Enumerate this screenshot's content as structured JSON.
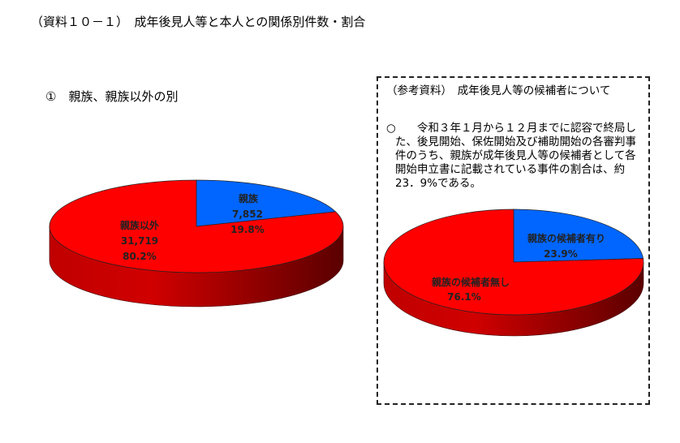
{
  "title": "（資料１０－１）　成年後見人等と本人との関係別件数・割合",
  "subtitle": "①　親族、親族以外の別",
  "reference": {
    "title": "（参考資料）　成年後見人等の候補者について",
    "bullet": "○",
    "text": "令和３年１月から１２月までに認容で終局した、後見開始、保佐開始及び補助開始の各審判事件のうち、親族が成年後見人等の候補者として各開始申立書に記載されている事件の割合は、約23．9%である。"
  },
  "colors": {
    "blue": "#0066ff",
    "red": "#ff0000",
    "side_dark": "#6b0000"
  },
  "chart_data": [
    {
      "type": "pie",
      "style": "3d",
      "slices": [
        {
          "label": "親族",
          "value": 7852,
          "value_text": "7,852",
          "percent": 19.8,
          "percent_text": "19.8%",
          "color": "#0066ff"
        },
        {
          "label": "親族以外",
          "value": 31719,
          "value_text": "31,719",
          "percent": 80.2,
          "percent_text": "80.2%",
          "color": "#ff0000"
        }
      ]
    },
    {
      "type": "pie",
      "style": "3d",
      "slices": [
        {
          "label": "親族の候補者有り",
          "percent": 23.9,
          "percent_text": "23.9%",
          "color": "#0066ff"
        },
        {
          "label": "親族の候補者無し",
          "percent": 76.1,
          "percent_text": "76.1%",
          "color": "#ff0000"
        }
      ]
    }
  ]
}
